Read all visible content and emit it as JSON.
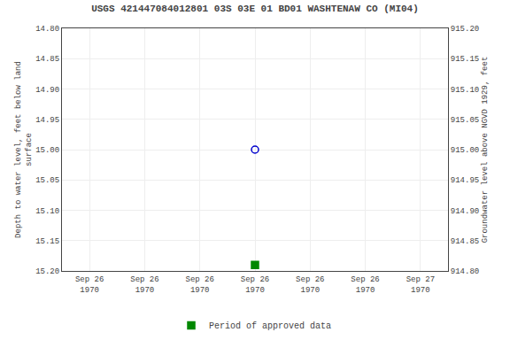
{
  "chart_data": {
    "type": "scatter",
    "title": "USGS 421447084012801 03S 03E 01 BD01 WASHTENAW CO (MI04)",
    "ylabel": "Depth to water level, feet below land\nsurface",
    "y2label": "Groundwater level above NGVD 1929, feet",
    "categories": [
      "Sep 26\n1970",
      "Sep 26\n1970",
      "Sep 26\n1970",
      "Sep 26\n1970",
      "Sep 26\n1970",
      "Sep 26\n1970",
      "Sep 27\n1970"
    ],
    "series": [
      {
        "color": "#0000CC",
        "marker": "circle-open",
        "values": [
          null,
          null,
          null,
          15.0,
          null,
          null,
          null
        ]
      },
      {
        "name": "Period of approved data",
        "color": "#008800",
        "marker": "square",
        "values": [
          null,
          null,
          null,
          15.19,
          null,
          null,
          null
        ]
      }
    ],
    "ylim": [
      15.2,
      14.8
    ],
    "yticks": [
      {
        "value": 14.8,
        "label": "14.80"
      },
      {
        "value": 14.85,
        "label": "14.85"
      },
      {
        "value": 14.9,
        "label": "14.90"
      },
      {
        "value": 14.95,
        "label": "14.95"
      },
      {
        "value": 15.0,
        "label": "15.00"
      },
      {
        "value": 15.05,
        "label": "15.05"
      },
      {
        "value": 15.1,
        "label": "15.10"
      },
      {
        "value": 15.15,
        "label": "15.15"
      },
      {
        "value": 15.2,
        "label": "15.20"
      }
    ],
    "y2lim": [
      914.8,
      915.2
    ],
    "y2ticks": [
      {
        "value": 914.8,
        "label": "914.80"
      },
      {
        "value": 914.85,
        "label": "914.85"
      },
      {
        "value": 914.9,
        "label": "914.90"
      },
      {
        "value": 914.95,
        "label": "914.95"
      },
      {
        "value": 915.0,
        "label": "915.00"
      },
      {
        "value": 915.05,
        "label": "915.05"
      },
      {
        "value": 915.1,
        "label": "915.10"
      },
      {
        "value": 915.15,
        "label": "915.15"
      },
      {
        "value": 915.2,
        "label": "915.20"
      }
    ],
    "grid": true,
    "legend": "bottom"
  }
}
